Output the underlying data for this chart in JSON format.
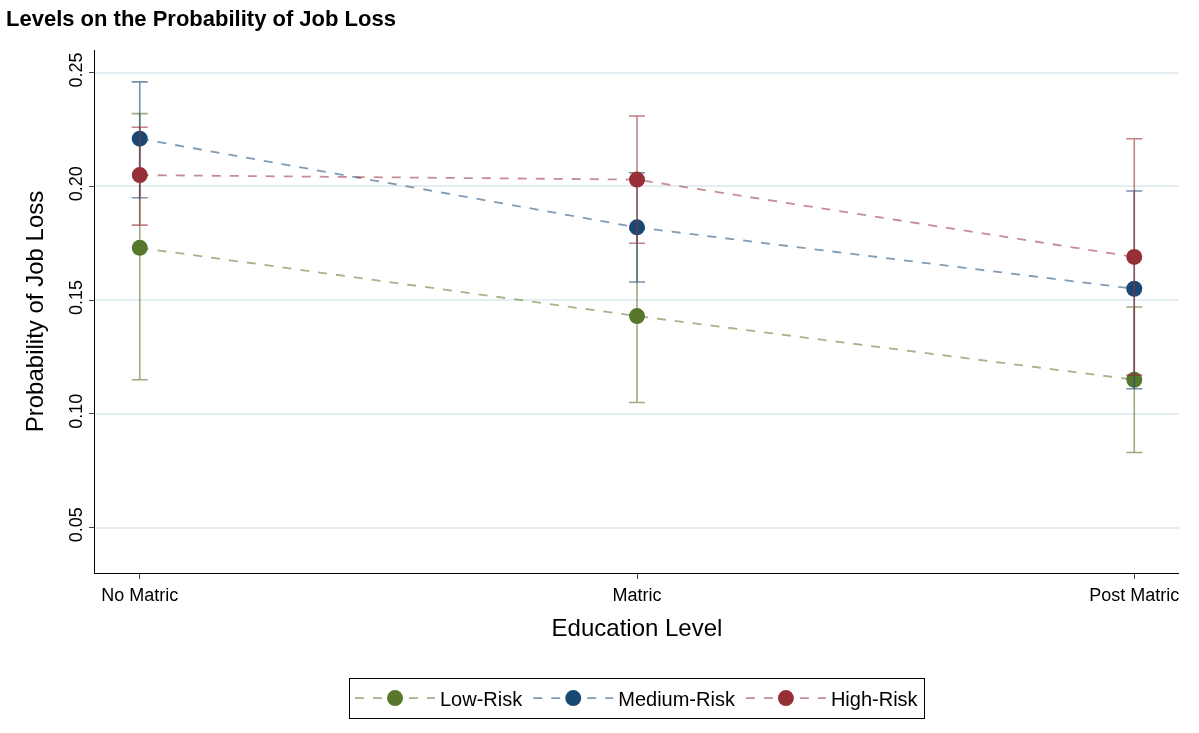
{
  "chart_data": {
    "type": "line",
    "title": "Levels on the Probability of Job Loss",
    "xlabel": "Education Level",
    "ylabel": "Probability of Job Loss",
    "categories": [
      "No Matric",
      "Matric",
      "Post Matric"
    ],
    "series": [
      {
        "name": "Low-Risk",
        "color": "#56772c",
        "values": [
          0.173,
          0.143,
          0.115
        ],
        "errors": [
          [
            0.115,
            0.232
          ],
          [
            0.105,
            0.181
          ],
          [
            0.083,
            0.147
          ]
        ]
      },
      {
        "name": "Medium-Risk",
        "color": "#1a4875",
        "values": [
          0.221,
          0.182,
          0.155
        ],
        "errors": [
          [
            0.195,
            0.246
          ],
          [
            0.158,
            0.206
          ],
          [
            0.111,
            0.198
          ]
        ]
      },
      {
        "name": "High-Risk",
        "color": "#963036",
        "values": [
          0.205,
          0.203,
          0.169
        ],
        "errors": [
          [
            0.183,
            0.226
          ],
          [
            0.175,
            0.231
          ],
          [
            0.117,
            0.221
          ]
        ]
      }
    ],
    "ylim": [
      0.03,
      0.26
    ],
    "yticks": [
      {
        "value": 0.05,
        "label": "0.05"
      },
      {
        "value": 0.1,
        "label": "0.10"
      },
      {
        "value": 0.15,
        "label": "0.15"
      },
      {
        "value": 0.2,
        "label": "0.20"
      },
      {
        "value": 0.25,
        "label": "0.25"
      }
    ],
    "grid": "y",
    "legend": "bottom",
    "marker": "circle",
    "line_style": "dashed"
  }
}
